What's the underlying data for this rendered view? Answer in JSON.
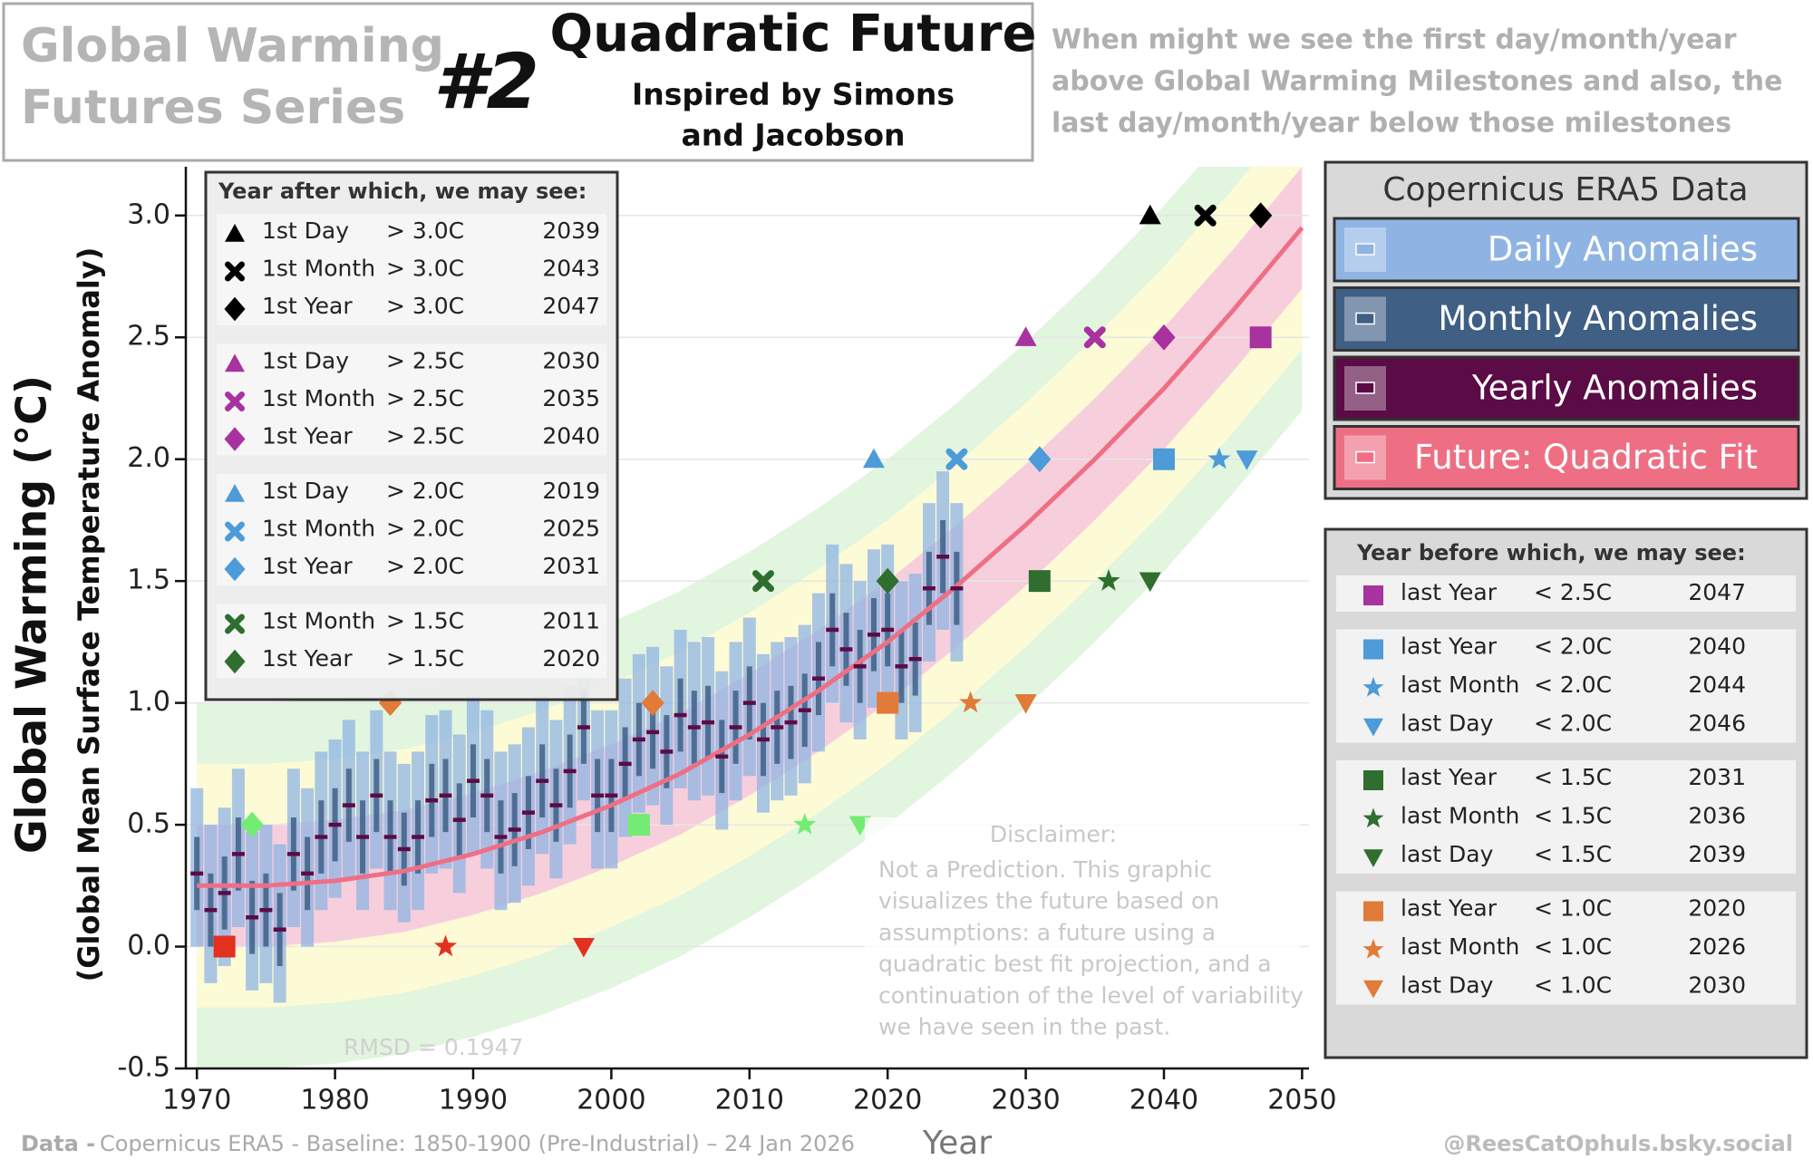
{
  "header": {
    "series_title": [
      "Global  Warming",
      "Futures Series"
    ],
    "number": "#2",
    "title": "Quadratic Future",
    "subtitle": [
      "Inspired by Simons",
      "and Jacobson"
    ],
    "question": [
      "When might we see the first day/month/year",
      "above Global Warming Milestones and also, the",
      "last day/month/year below those milestones"
    ]
  },
  "chart_data": {
    "type": "scatter",
    "x_label": "Year",
    "y_label": "Global Warming  (°C)",
    "y_label_sub": "(Global Mean Surface Temperature Anomaly)",
    "xlim": [
      1969.2,
      2050.5
    ],
    "xticks": [
      1970,
      1980,
      1990,
      2000,
      2010,
      2020,
      2030,
      2040,
      2050
    ],
    "ylim": [
      -0.5,
      3.2
    ],
    "yticks": [
      -0.5,
      {
        "value": 0,
        "label": "0.0"
      },
      0.5,
      {
        "value": 1,
        "label": "1.0"
      },
      1.5,
      {
        "value": 2,
        "label": "2.0"
      },
      2.5,
      {
        "value": 3,
        "label": "3.0"
      }
    ],
    "grid": true,
    "legend_title": "Copernicus ERA5 Data",
    "x": [
      1970,
      1971,
      1972,
      1973,
      1974,
      1975,
      1976,
      1977,
      1978,
      1979,
      1980,
      1981,
      1982,
      1983,
      1984,
      1985,
      1986,
      1987,
      1988,
      1989,
      1990,
      1991,
      1992,
      1993,
      1994,
      1995,
      1996,
      1997,
      1998,
      1999,
      2000,
      2001,
      2002,
      2003,
      2004,
      2005,
      2006,
      2007,
      2008,
      2009,
      2010,
      2011,
      2012,
      2013,
      2014,
      2015,
      2016,
      2017,
      2018,
      2019,
      2020,
      2021,
      2022,
      2023,
      2024,
      2025
    ],
    "series": [
      {
        "name": "Daily Anomalies",
        "color": "#8fb4e3",
        "min": [
          0.0,
          -0.15,
          -0.08,
          0.08,
          -0.18,
          -0.15,
          -0.23,
          0.08,
          0.0,
          0.15,
          0.2,
          0.28,
          0.15,
          0.32,
          0.15,
          0.1,
          0.15,
          0.3,
          0.32,
          0.22,
          0.38,
          0.32,
          0.15,
          0.18,
          0.25,
          0.38,
          0.28,
          0.42,
          0.6,
          0.32,
          0.32,
          0.45,
          0.55,
          0.58,
          0.5,
          0.65,
          0.6,
          0.62,
          0.48,
          0.6,
          0.7,
          0.55,
          0.6,
          0.62,
          0.67,
          0.8,
          1.0,
          0.92,
          0.85,
          0.98,
          1.0,
          0.85,
          0.88,
          1.17,
          1.3,
          1.17
        ],
        "max": [
          0.65,
          0.5,
          0.57,
          0.73,
          0.47,
          0.5,
          0.42,
          0.73,
          0.65,
          0.8,
          0.85,
          0.93,
          0.8,
          0.97,
          0.8,
          0.75,
          0.8,
          0.95,
          0.97,
          0.87,
          1.03,
          0.97,
          0.8,
          0.83,
          0.9,
          1.03,
          0.93,
          1.07,
          1.25,
          0.97,
          0.97,
          1.1,
          1.2,
          1.23,
          1.15,
          1.3,
          1.25,
          1.27,
          1.13,
          1.25,
          1.35,
          1.2,
          1.25,
          1.27,
          1.32,
          1.45,
          1.65,
          1.57,
          1.5,
          1.63,
          1.65,
          1.5,
          1.53,
          1.82,
          1.95,
          1.82
        ]
      },
      {
        "name": "Monthly Anomalies",
        "color": "#3f5f85",
        "min": [
          0.15,
          0.0,
          0.07,
          0.23,
          -0.03,
          0.0,
          -0.08,
          0.23,
          0.15,
          0.3,
          0.35,
          0.43,
          0.3,
          0.47,
          0.3,
          0.25,
          0.3,
          0.45,
          0.47,
          0.37,
          0.53,
          0.47,
          0.3,
          0.33,
          0.4,
          0.53,
          0.43,
          0.57,
          0.75,
          0.47,
          0.47,
          0.6,
          0.7,
          0.73,
          0.65,
          0.8,
          0.75,
          0.77,
          0.63,
          0.75,
          0.85,
          0.7,
          0.75,
          0.77,
          0.82,
          0.95,
          1.15,
          1.07,
          1.0,
          1.13,
          1.15,
          1.0,
          1.03,
          1.32,
          1.45,
          1.32
        ],
        "max": [
          0.45,
          0.3,
          0.37,
          0.53,
          0.27,
          0.3,
          0.22,
          0.53,
          0.45,
          0.6,
          0.65,
          0.73,
          0.6,
          0.77,
          0.6,
          0.55,
          0.6,
          0.75,
          0.77,
          0.67,
          0.83,
          0.77,
          0.6,
          0.63,
          0.7,
          0.83,
          0.73,
          0.87,
          1.05,
          0.77,
          0.77,
          0.9,
          1.0,
          1.03,
          0.95,
          1.1,
          1.05,
          1.07,
          0.93,
          1.05,
          1.15,
          1.0,
          1.05,
          1.07,
          1.12,
          1.25,
          1.45,
          1.37,
          1.3,
          1.43,
          1.45,
          1.3,
          1.33,
          1.62,
          1.75,
          1.62
        ]
      },
      {
        "name": "Yearly Anomalies",
        "color": "#5b0b45",
        "values": [
          0.3,
          0.15,
          0.22,
          0.38,
          0.12,
          0.15,
          0.07,
          0.38,
          0.3,
          0.45,
          0.5,
          0.58,
          0.45,
          0.62,
          0.45,
          0.4,
          0.45,
          0.6,
          0.62,
          0.52,
          0.68,
          0.62,
          0.45,
          0.48,
          0.55,
          0.68,
          0.58,
          0.72,
          0.9,
          0.62,
          0.62,
          0.75,
          0.85,
          0.88,
          0.8,
          0.95,
          0.9,
          0.92,
          0.78,
          0.9,
          1.0,
          0.85,
          0.9,
          0.92,
          0.97,
          1.1,
          1.3,
          1.22,
          1.15,
          1.28,
          1.3,
          1.15,
          1.18,
          1.47,
          1.6,
          1.47
        ]
      },
      {
        "name": "Future: Quadratic Fit",
        "color": "#ee6f84",
        "x": [
          1970,
          1975,
          1980,
          1985,
          1990,
          1995,
          2000,
          2005,
          2010,
          2015,
          2020,
          2025,
          2030,
          2035,
          2040,
          2045,
          2050
        ],
        "values": [
          0.25,
          0.25,
          0.27,
          0.31,
          0.38,
          0.47,
          0.58,
          0.71,
          0.87,
          1.05,
          1.25,
          1.48,
          1.73,
          2.0,
          2.29,
          2.61,
          2.95
        ]
      }
    ],
    "bands": [
      {
        "half_width": 0.75,
        "color": "#e2f5df"
      },
      {
        "half_width": 0.5,
        "color": "#fdfbd6"
      },
      {
        "half_width": 0.25,
        "color": "#f7cfdc"
      }
    ],
    "milestones_first": {
      "title": "Year after which, we may see:",
      "groups": [
        [
          {
            "label": "1st Day",
            "condition": "> 3.0C",
            "year": 2039,
            "level": 3.0,
            "marker": "triangle",
            "color": "#000000"
          },
          {
            "label": "1st Month",
            "condition": "> 3.0C",
            "year": 2043,
            "level": 3.0,
            "marker": "cross",
            "color": "#000000"
          },
          {
            "label": "1st Year",
            "condition": "> 3.0C",
            "year": 2047,
            "level": 3.0,
            "marker": "diamond",
            "color": "#000000"
          }
        ],
        [
          {
            "label": "1st Day",
            "condition": "> 2.5C",
            "year": 2030,
            "level": 2.5,
            "marker": "triangle",
            "color": "#a8329f"
          },
          {
            "label": "1st Month",
            "condition": "> 2.5C",
            "year": 2035,
            "level": 2.5,
            "marker": "cross",
            "color": "#a8329f"
          },
          {
            "label": "1st Year",
            "condition": "> 2.5C",
            "year": 2040,
            "level": 2.5,
            "marker": "diamond",
            "color": "#a8329f"
          }
        ],
        [
          {
            "label": "1st Day",
            "condition": "> 2.0C",
            "year": 2019,
            "level": 2.0,
            "marker": "triangle",
            "color": "#4d9bd8"
          },
          {
            "label": "1st Month",
            "condition": "> 2.0C",
            "year": 2025,
            "level": 2.0,
            "marker": "cross",
            "color": "#4d9bd8"
          },
          {
            "label": "1st Year",
            "condition": "> 2.0C",
            "year": 2031,
            "level": 2.0,
            "marker": "diamond",
            "color": "#4d9bd8"
          }
        ],
        [
          {
            "label": "1st Month",
            "condition": "> 1.5C",
            "year": 2011,
            "level": 1.5,
            "marker": "cross",
            "color": "#2f6e2f"
          },
          {
            "label": "1st Year",
            "condition": "> 1.5C",
            "year": 2020,
            "level": 1.5,
            "marker": "diamond",
            "color": "#2f6e2f"
          }
        ]
      ]
    },
    "milestones_last": {
      "title": "Year before which, we may  see:",
      "groups": [
        [
          {
            "label": "last Year",
            "condition": "< 2.5C",
            "year": 2047,
            "level": 2.5,
            "marker": "square",
            "color": "#a8329f"
          }
        ],
        [
          {
            "label": "last Year",
            "condition": "< 2.0C",
            "year": 2040,
            "level": 2.0,
            "marker": "square",
            "color": "#4d9bd8"
          },
          {
            "label": "last Month",
            "condition": "< 2.0C",
            "year": 2044,
            "level": 2.0,
            "marker": "star",
            "color": "#4d9bd8"
          },
          {
            "label": "last Day",
            "condition": "< 2.0C",
            "year": 2046,
            "level": 2.0,
            "marker": "triangle-down",
            "color": "#4d9bd8"
          }
        ],
        [
          {
            "label": "last Year",
            "condition": "< 1.5C",
            "year": 2031,
            "level": 1.5,
            "marker": "square",
            "color": "#2f6e2f"
          },
          {
            "label": "last Month",
            "condition": "< 1.5C",
            "year": 2036,
            "level": 1.5,
            "marker": "star",
            "color": "#2f6e2f"
          },
          {
            "label": "last Day",
            "condition": "< 1.5C",
            "year": 2039,
            "level": 1.5,
            "marker": "triangle-down",
            "color": "#2f6e2f"
          }
        ],
        [
          {
            "label": "last Year",
            "condition": "< 1.0C",
            "year": 2020,
            "level": 1.0,
            "marker": "square",
            "color": "#e07b39"
          },
          {
            "label": "last Month",
            "condition": "< 1.0C",
            "year": 2026,
            "level": 1.0,
            "marker": "star",
            "color": "#e07b39"
          },
          {
            "label": "last Day",
            "condition": "< 1.0C",
            "year": 2030,
            "level": 1.0,
            "marker": "triangle-down",
            "color": "#e07b39"
          }
        ]
      ]
    },
    "other_markers": [
      {
        "year": 1984,
        "level": 1.0,
        "marker": "diamond",
        "color": "#e07b39"
      },
      {
        "year": 2003,
        "level": 1.0,
        "marker": "diamond",
        "color": "#e07b39"
      },
      {
        "year": 1974,
        "level": 0.5,
        "marker": "diamond",
        "color": "#72ec72"
      },
      {
        "year": 2002,
        "level": 0.5,
        "marker": "square",
        "color": "#72ec72"
      },
      {
        "year": 2014,
        "level": 0.5,
        "marker": "star",
        "color": "#72ec72"
      },
      {
        "year": 2018,
        "level": 0.5,
        "marker": "triangle-down",
        "color": "#72ec72"
      },
      {
        "year": 1972,
        "level": 0.0,
        "marker": "square",
        "color": "#e2321f"
      },
      {
        "year": 1988,
        "level": 0.0,
        "marker": "star",
        "color": "#e2321f"
      },
      {
        "year": 1998,
        "level": 0.0,
        "marker": "triangle-down",
        "color": "#e2321f"
      }
    ],
    "rmsd": "RMSD = 0.1947",
    "disclaimer": {
      "title": "Disclaimer:",
      "lines": [
        "Not a Prediction. This graphic",
        "visualizes the future based on",
        "assumptions: a future using a",
        "quadratic best fit projection, and a",
        "continuation of the level of variability",
        "we have seen in the past."
      ]
    }
  },
  "footer": {
    "data_label": "Data -",
    "source": "Copernicus ERA5 - Baseline: 1850-1900 (Pre-Industrial) – 24 Jan 2026",
    "credit": "@ReesCatOphuls.bsky.social"
  }
}
